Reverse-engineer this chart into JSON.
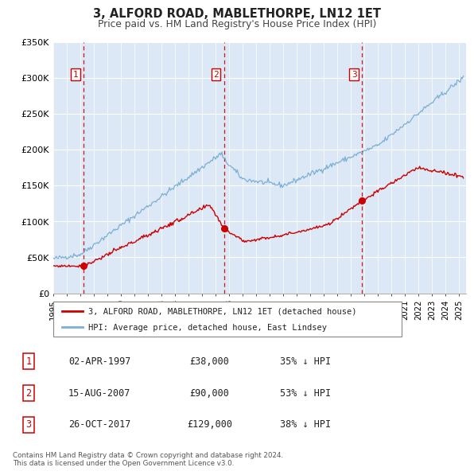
{
  "title": "3, ALFORD ROAD, MABLETHORPE, LN12 1ET",
  "subtitle": "Price paid vs. HM Land Registry's House Price Index (HPI)",
  "plot_bg_color": "#dce8f5",
  "red_line_label": "3, ALFORD ROAD, MABLETHORPE, LN12 1ET (detached house)",
  "blue_line_label": "HPI: Average price, detached house, East Lindsey",
  "sales": [
    {
      "num": 1,
      "date_x": 1997.25,
      "price": 38000,
      "pct": "35%",
      "date_str": "02-APR-1997"
    },
    {
      "num": 2,
      "date_x": 2007.62,
      "price": 90000,
      "pct": "53%",
      "date_str": "15-AUG-2007"
    },
    {
      "num": 3,
      "date_x": 2017.82,
      "price": 129000,
      "pct": "38%",
      "date_str": "26-OCT-2017"
    }
  ],
  "ylim": [
    0,
    350000
  ],
  "xlim": [
    1995.0,
    2025.5
  ],
  "yticks": [
    0,
    50000,
    100000,
    150000,
    200000,
    250000,
    300000,
    350000
  ],
  "ytick_labels": [
    "£0",
    "£50K",
    "£100K",
    "£150K",
    "£200K",
    "£250K",
    "£300K",
    "£350K"
  ],
  "footer_line1": "Contains HM Land Registry data © Crown copyright and database right 2024.",
  "footer_line2": "This data is licensed under the Open Government Licence v3.0.",
  "red_color": "#cc0000",
  "blue_color": "#7bafd4",
  "grid_color": "white",
  "hpi_seed": 42,
  "red_seed": 77
}
